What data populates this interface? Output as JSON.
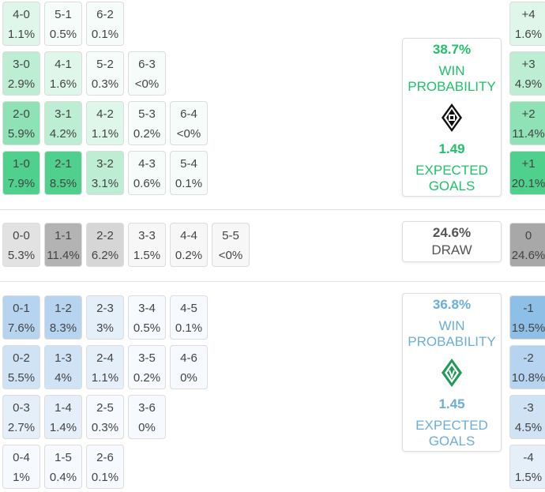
{
  "home": {
    "probability": "38.7%",
    "win_label_1": "WIN",
    "win_label_2": "PROBABILITY",
    "expected_goals": "1.49",
    "xg_label_1": "EXPECTED",
    "xg_label_2": "GOALS",
    "color": "#1fc16a",
    "crest_icon": "gladbach-crest-icon"
  },
  "draw": {
    "probability": "24.6%",
    "label": "DRAW"
  },
  "away": {
    "probability": "36.8%",
    "win_label_1": "WIN",
    "win_label_2": "PROBABILITY",
    "expected_goals": "1.45",
    "xg_label_1": "EXPECTED",
    "xg_label_2": "GOALS",
    "color": "#6aaedc",
    "crest_icon": "werder-crest-icon"
  },
  "home_scores": [
    {
      "score": "4-0",
      "prob": "1.1%",
      "row": 0,
      "col": 0,
      "shade": 1
    },
    {
      "score": "5-1",
      "prob": "0.5%",
      "row": 0,
      "col": 1,
      "shade": 0
    },
    {
      "score": "6-2",
      "prob": "0.1%",
      "row": 0,
      "col": 2,
      "shade": 0
    },
    {
      "score": "3-0",
      "prob": "2.9%",
      "row": 1,
      "col": 0,
      "shade": 2
    },
    {
      "score": "4-1",
      "prob": "1.6%",
      "row": 1,
      "col": 1,
      "shade": 1
    },
    {
      "score": "5-2",
      "prob": "0.3%",
      "row": 1,
      "col": 2,
      "shade": 0
    },
    {
      "score": "6-3",
      "prob": "<0%",
      "row": 1,
      "col": 3,
      "shade": 0
    },
    {
      "score": "2-0",
      "prob": "5.9%",
      "row": 2,
      "col": 0,
      "shade": 3
    },
    {
      "score": "3-1",
      "prob": "4.2%",
      "row": 2,
      "col": 1,
      "shade": 2
    },
    {
      "score": "4-2",
      "prob": "1.1%",
      "row": 2,
      "col": 2,
      "shade": 1
    },
    {
      "score": "5-3",
      "prob": "0.2%",
      "row": 2,
      "col": 3,
      "shade": 0
    },
    {
      "score": "6-4",
      "prob": "<0%",
      "row": 2,
      "col": 4,
      "shade": 0
    },
    {
      "score": "1-0",
      "prob": "7.9%",
      "row": 3,
      "col": 0,
      "shade": 4
    },
    {
      "score": "2-1",
      "prob": "8.5%",
      "row": 3,
      "col": 1,
      "shade": 4
    },
    {
      "score": "3-2",
      "prob": "3.1%",
      "row": 3,
      "col": 2,
      "shade": 2
    },
    {
      "score": "4-3",
      "prob": "0.6%",
      "row": 3,
      "col": 3,
      "shade": 0
    },
    {
      "score": "5-4",
      "prob": "0.1%",
      "row": 3,
      "col": 4,
      "shade": 0
    }
  ],
  "draw_scores": [
    {
      "score": "0-0",
      "prob": "5.3%",
      "col": 0,
      "shade": 1
    },
    {
      "score": "1-1",
      "prob": "11.4%",
      "col": 1,
      "shade": 3
    },
    {
      "score": "2-2",
      "prob": "6.2%",
      "col": 2,
      "shade": 2
    },
    {
      "score": "3-3",
      "prob": "1.5%",
      "col": 3,
      "shade": 0
    },
    {
      "score": "4-4",
      "prob": "0.2%",
      "col": 4,
      "shade": 0
    },
    {
      "score": "5-5",
      "prob": "<0%",
      "col": 5,
      "shade": 0
    }
  ],
  "away_scores": [
    {
      "score": "0-1",
      "prob": "7.6%",
      "row": 0,
      "col": 0,
      "shade": 3
    },
    {
      "score": "1-2",
      "prob": "8.3%",
      "row": 0,
      "col": 1,
      "shade": 3
    },
    {
      "score": "2-3",
      "prob": "3%",
      "row": 0,
      "col": 2,
      "shade": 1
    },
    {
      "score": "3-4",
      "prob": "0.5%",
      "row": 0,
      "col": 3,
      "shade": 0
    },
    {
      "score": "4-5",
      "prob": "0.1%",
      "row": 0,
      "col": 4,
      "shade": 0
    },
    {
      "score": "0-2",
      "prob": "5.5%",
      "row": 1,
      "col": 0,
      "shade": 2
    },
    {
      "score": "1-3",
      "prob": "4%",
      "row": 1,
      "col": 1,
      "shade": 2
    },
    {
      "score": "2-4",
      "prob": "1.1%",
      "row": 1,
      "col": 2,
      "shade": 1
    },
    {
      "score": "3-5",
      "prob": "0.2%",
      "row": 1,
      "col": 3,
      "shade": 0
    },
    {
      "score": "4-6",
      "prob": "0%",
      "row": 1,
      "col": 4,
      "shade": 0
    },
    {
      "score": "0-3",
      "prob": "2.7%",
      "row": 2,
      "col": 0,
      "shade": 1
    },
    {
      "score": "1-4",
      "prob": "1.4%",
      "row": 2,
      "col": 1,
      "shade": 1
    },
    {
      "score": "2-5",
      "prob": "0.3%",
      "row": 2,
      "col": 2,
      "shade": 0
    },
    {
      "score": "3-6",
      "prob": "0%",
      "row": 2,
      "col": 3,
      "shade": 0
    },
    {
      "score": "0-4",
      "prob": "1%",
      "row": 3,
      "col": 0,
      "shade": 0
    },
    {
      "score": "1-5",
      "prob": "0.4%",
      "row": 3,
      "col": 1,
      "shade": 0
    },
    {
      "score": "2-6",
      "prob": "0.1%",
      "row": 3,
      "col": 2,
      "shade": 0
    }
  ],
  "home_margins": [
    {
      "margin": "+4",
      "prob": "1.6%",
      "shade": 1
    },
    {
      "margin": "+3",
      "prob": "4.9%",
      "shade": 2
    },
    {
      "margin": "+2",
      "prob": "11.4%",
      "shade": 3
    },
    {
      "margin": "+1",
      "prob": "20.1%",
      "shade": 4
    }
  ],
  "draw_margin": {
    "margin": "0",
    "prob": "24.6%",
    "shade": 4
  },
  "away_margins": [
    {
      "margin": "-1",
      "prob": "19.5%",
      "shade": 4
    },
    {
      "margin": "-2",
      "prob": "10.8%",
      "shade": 3
    },
    {
      "margin": "-3",
      "prob": "4.5%",
      "shade": 2
    },
    {
      "margin": "-4",
      "prob": "1.5%",
      "shade": 1
    }
  ],
  "palette": {
    "green": [
      "#f6fcf9",
      "#dff7ea",
      "#bdeed3",
      "#8fe2b6",
      "#4fd08d"
    ],
    "grey": [
      "#f7f7f7",
      "#e2e2e2",
      "#d6d6d6",
      "#b3b3b3",
      "#a8a8a8"
    ],
    "blue": [
      "#f6f9fd",
      "#e4eff9",
      "#cfe3f4",
      "#b6d4ef",
      "#8ebfe6"
    ]
  }
}
